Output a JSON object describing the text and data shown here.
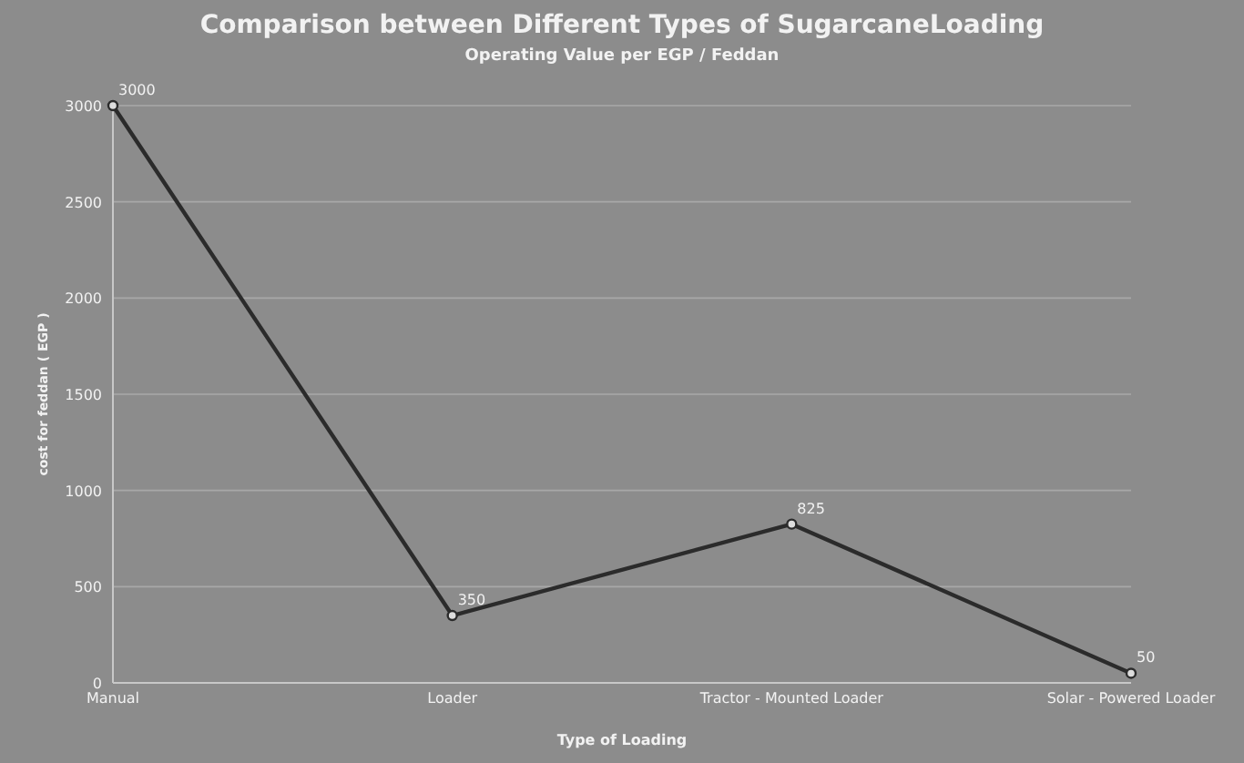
{
  "chart_data": {
    "type": "line",
    "title": "Comparison between Different Types of SugarcaneLoading",
    "subtitle": "Operating Value per EGP / Feddan",
    "xlabel": "Type of Loading",
    "ylabel": "cost for feddan ( EGP )",
    "categories": [
      "Manual",
      "Loader",
      "Tractor - Mounted Loader",
      "Solar - Powered Loader"
    ],
    "series": [
      {
        "color": "#2b2b2b",
        "values": [
          3000,
          350,
          825,
          50
        ]
      }
    ],
    "ylim": [
      0,
      3000
    ],
    "yticks": [
      0,
      500,
      1000,
      1500,
      2000,
      2500,
      3000
    ],
    "grid": "y",
    "data_labels": true,
    "marker": "circle",
    "line_style": "solid"
  }
}
